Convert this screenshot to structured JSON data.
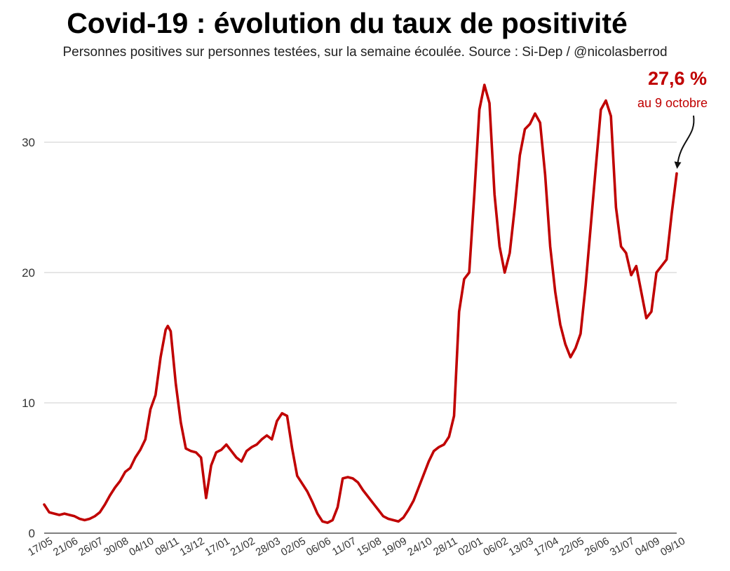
{
  "header": {
    "title": "Covid-19 : évolution du taux de positivité",
    "subtitle": "Personnes positives sur personnes testées, sur la semaine écoulée. Source : Si-Dep / @nicolasberrod"
  },
  "colors": {
    "line": "#c00000",
    "grid": "#cccccc",
    "arrow": "#111111"
  },
  "chart_data": {
    "type": "line",
    "title": "Covid-19 : évolution du taux de positivité",
    "subtitle": "Personnes positives sur personnes testées, sur la semaine écoulée. Source : Si-Dep / @nicolasberrod",
    "xlabel": "",
    "ylabel": "",
    "ylim": [
      0,
      35
    ],
    "yticks": [
      0,
      10,
      20,
      30
    ],
    "grid": true,
    "x_tick_labels": [
      "17/05",
      "21/06",
      "26/07",
      "30/08",
      "04/10",
      "08/11",
      "13/12",
      "17/01",
      "21/02",
      "28/03",
      "02/05",
      "06/06",
      "11/07",
      "15/08",
      "19/09",
      "24/10",
      "28/11",
      "02/01",
      "06/02",
      "13/03",
      "17/04",
      "22/05",
      "26/06",
      "31/07",
      "04/09",
      "09/10"
    ],
    "x_tick_dates": [
      "2020-05-17",
      "2020-06-21",
      "2020-07-26",
      "2020-08-30",
      "2020-10-04",
      "2020-11-08",
      "2020-12-13",
      "2021-01-17",
      "2021-02-21",
      "2021-03-28",
      "2021-05-02",
      "2021-06-06",
      "2021-07-11",
      "2021-08-15",
      "2021-09-19",
      "2021-10-24",
      "2021-11-28",
      "2022-01-02",
      "2022-02-06",
      "2022-03-13",
      "2022-04-17",
      "2022-05-22",
      "2022-06-26",
      "2022-07-31",
      "2022-09-04",
      "2022-10-09"
    ],
    "series": [
      {
        "x": [
          "2020-05-17",
          "2020-05-24",
          "2020-05-31",
          "2020-06-07",
          "2020-06-14",
          "2020-06-21",
          "2020-06-28",
          "2020-07-05",
          "2020-07-12",
          "2020-07-19",
          "2020-07-26",
          "2020-08-02",
          "2020-08-09",
          "2020-08-16",
          "2020-08-23",
          "2020-08-30",
          "2020-09-06",
          "2020-09-13",
          "2020-09-20",
          "2020-09-27",
          "2020-10-04",
          "2020-10-11",
          "2020-10-18",
          "2020-10-25",
          "2020-11-01",
          "2020-11-04",
          "2020-11-08",
          "2020-11-15",
          "2020-11-22",
          "2020-11-29",
          "2020-12-06",
          "2020-12-13",
          "2020-12-20",
          "2020-12-27",
          "2021-01-03",
          "2021-01-10",
          "2021-01-17",
          "2021-01-24",
          "2021-01-31",
          "2021-02-07",
          "2021-02-14",
          "2021-02-21",
          "2021-02-28",
          "2021-03-07",
          "2021-03-14",
          "2021-03-21",
          "2021-03-28",
          "2021-04-04",
          "2021-04-11",
          "2021-04-18",
          "2021-04-25",
          "2021-05-02",
          "2021-05-09",
          "2021-05-16",
          "2021-05-23",
          "2021-05-30",
          "2021-06-06",
          "2021-06-13",
          "2021-06-20",
          "2021-06-27",
          "2021-07-04",
          "2021-07-11",
          "2021-07-18",
          "2021-07-25",
          "2021-08-01",
          "2021-08-08",
          "2021-08-15",
          "2021-08-22",
          "2021-08-29",
          "2021-09-05",
          "2021-09-12",
          "2021-09-19",
          "2021-09-26",
          "2021-10-03",
          "2021-10-10",
          "2021-10-17",
          "2021-10-24",
          "2021-10-31",
          "2021-11-07",
          "2021-11-14",
          "2021-11-21",
          "2021-11-28",
          "2021-12-05",
          "2021-12-12",
          "2021-12-19",
          "2021-12-26",
          "2022-01-02",
          "2022-01-09",
          "2022-01-16",
          "2022-01-23",
          "2022-01-30",
          "2022-02-06",
          "2022-02-13",
          "2022-02-20",
          "2022-02-27",
          "2022-03-06",
          "2022-03-13",
          "2022-03-20",
          "2022-03-27",
          "2022-04-03",
          "2022-04-10",
          "2022-04-17",
          "2022-04-24",
          "2022-05-01",
          "2022-05-08",
          "2022-05-15",
          "2022-05-22",
          "2022-05-29",
          "2022-06-05",
          "2022-06-12",
          "2022-06-19",
          "2022-06-26",
          "2022-07-03",
          "2022-07-10",
          "2022-07-17",
          "2022-07-24",
          "2022-07-31",
          "2022-08-07",
          "2022-08-14",
          "2022-08-21",
          "2022-08-28",
          "2022-09-04",
          "2022-09-11",
          "2022-09-18",
          "2022-09-25",
          "2022-10-02",
          "2022-10-09"
        ],
        "y": [
          2.2,
          1.6,
          1.5,
          1.4,
          1.5,
          1.4,
          1.3,
          1.1,
          1.0,
          1.1,
          1.3,
          1.6,
          2.2,
          2.9,
          3.5,
          4.0,
          4.7,
          5.0,
          5.8,
          6.4,
          7.2,
          9.5,
          10.6,
          13.5,
          15.6,
          15.9,
          15.5,
          11.5,
          8.5,
          6.5,
          6.3,
          6.2,
          5.8,
          2.7,
          5.2,
          6.2,
          6.4,
          6.8,
          6.3,
          5.8,
          5.5,
          6.3,
          6.6,
          6.8,
          7.2,
          7.5,
          7.2,
          8.6,
          9.2,
          9.0,
          6.5,
          4.4,
          3.8,
          3.2,
          2.4,
          1.5,
          0.9,
          0.8,
          1.0,
          2.0,
          4.2,
          4.3,
          4.2,
          3.9,
          3.3,
          2.8,
          2.3,
          1.8,
          1.3,
          1.1,
          1.0,
          0.9,
          1.2,
          1.8,
          2.5,
          3.5,
          4.5,
          5.5,
          6.3,
          6.6,
          6.8,
          7.4,
          9.0,
          17.0,
          19.5,
          20.0,
          26.0,
          32.5,
          34.4,
          33.0,
          26.0,
          22.0,
          20.0,
          21.5,
          25.0,
          29.0,
          31.0,
          31.4,
          32.2,
          31.5,
          27.5,
          22.0,
          18.5,
          16.0,
          14.5,
          13.5,
          14.2,
          15.3,
          19.0,
          23.5,
          28.0,
          32.5,
          33.2,
          32.0,
          25.0,
          22.0,
          21.5,
          19.8,
          20.5,
          18.5,
          16.5,
          17.0,
          20.0,
          20.5,
          21.0,
          24.5,
          27.6
        ]
      }
    ],
    "annotation": {
      "value": "27,6 %",
      "label": "au 9 octobre",
      "date": "2022-10-09",
      "y": 27.6
    }
  }
}
